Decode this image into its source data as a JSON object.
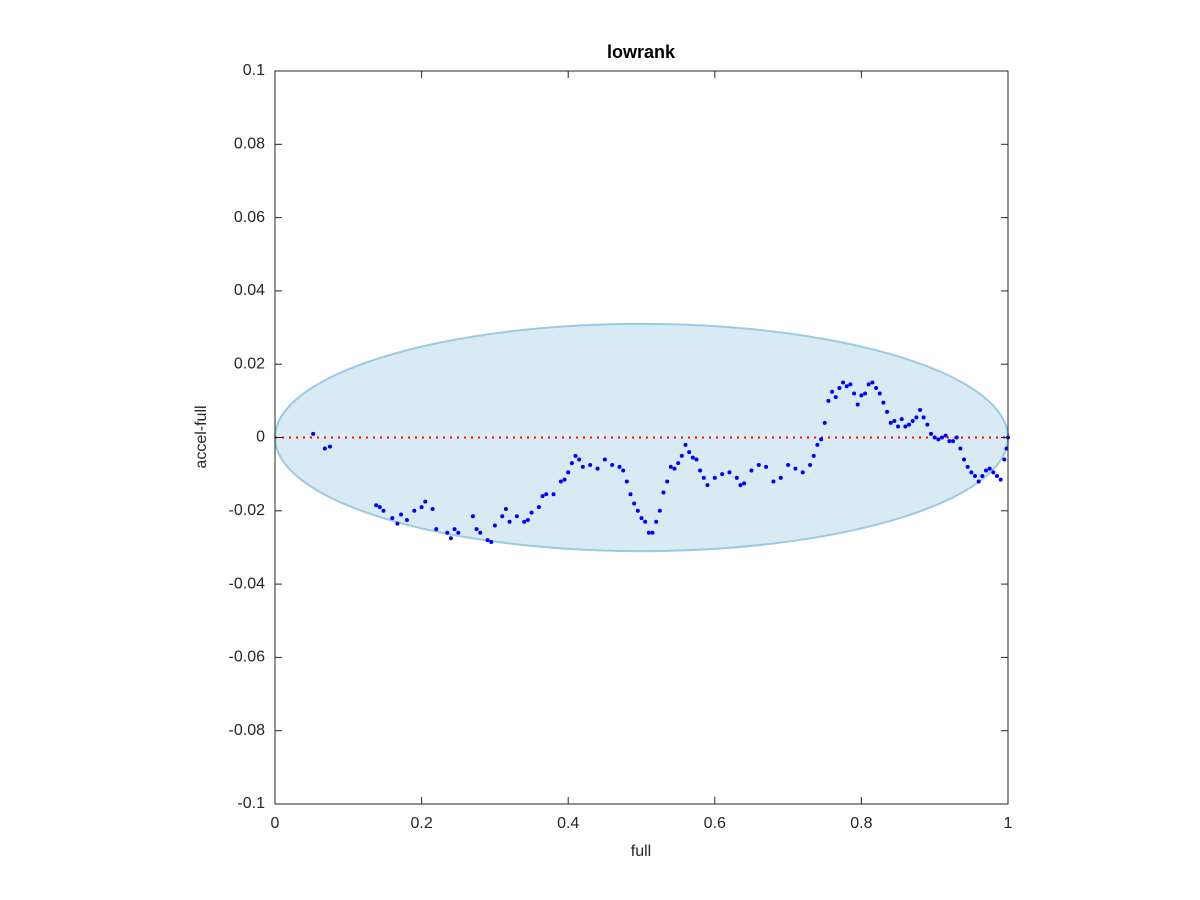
{
  "chart_data": {
    "type": "scatter",
    "title": "lowrank",
    "xlabel": "full",
    "ylabel": "accel-full",
    "xlim": [
      0,
      1
    ],
    "ylim": [
      -0.1,
      0.1
    ],
    "xticks": [
      0,
      0.2,
      0.4,
      0.6,
      0.8,
      1
    ],
    "yticks": [
      -0.1,
      -0.08,
      -0.06,
      -0.04,
      -0.02,
      0,
      0.02,
      0.04,
      0.06,
      0.08,
      0.1
    ],
    "ellipse": {
      "cx": 0.5,
      "cy": 0,
      "rx": 0.5,
      "ry": 0.031,
      "color": "#9ecae1"
    },
    "reference_line": {
      "y": 0,
      "color": "#ff0000"
    },
    "series": [
      {
        "color": "#0000ff",
        "x": [
          0.052,
          0.068,
          0.075,
          0.138,
          0.143,
          0.148,
          0.16,
          0.167,
          0.172,
          0.18,
          0.19,
          0.2,
          0.205,
          0.215,
          0.22,
          0.235,
          0.24,
          0.245,
          0.25,
          0.27,
          0.275,
          0.28,
          0.29,
          0.295,
          0.3,
          0.31,
          0.315,
          0.32,
          0.33,
          0.34,
          0.345,
          0.35,
          0.36,
          0.365,
          0.37,
          0.38,
          0.39,
          0.395,
          0.4,
          0.405,
          0.41,
          0.415,
          0.42,
          0.43,
          0.44,
          0.45,
          0.46,
          0.47,
          0.475,
          0.48,
          0.485,
          0.49,
          0.495,
          0.5,
          0.505,
          0.51,
          0.515,
          0.52,
          0.525,
          0.53,
          0.535,
          0.54,
          0.545,
          0.55,
          0.555,
          0.56,
          0.565,
          0.57,
          0.575,
          0.58,
          0.585,
          0.59,
          0.6,
          0.61,
          0.62,
          0.63,
          0.635,
          0.64,
          0.65,
          0.66,
          0.67,
          0.68,
          0.69,
          0.7,
          0.71,
          0.72,
          0.73,
          0.735,
          0.74,
          0.745,
          0.75,
          0.755,
          0.76,
          0.765,
          0.77,
          0.775,
          0.78,
          0.785,
          0.79,
          0.795,
          0.8,
          0.805,
          0.81,
          0.815,
          0.82,
          0.825,
          0.83,
          0.835,
          0.84,
          0.845,
          0.85,
          0.855,
          0.86,
          0.865,
          0.87,
          0.875,
          0.88,
          0.885,
          0.89,
          0.895,
          0.9,
          0.905,
          0.91,
          0.915,
          0.92,
          0.925,
          0.93,
          0.935,
          0.94,
          0.945,
          0.95,
          0.955,
          0.96,
          0.965,
          0.97,
          0.975,
          0.98,
          0.985,
          0.99,
          0.995,
          0.998,
          1.0
        ],
        "values": [
          0.001,
          -0.003,
          -0.0025,
          -0.0185,
          -0.019,
          -0.02,
          -0.022,
          -0.0235,
          -0.021,
          -0.0225,
          -0.02,
          -0.019,
          -0.0175,
          -0.0195,
          -0.025,
          -0.026,
          -0.0275,
          -0.025,
          -0.026,
          -0.0215,
          -0.025,
          -0.026,
          -0.028,
          -0.0285,
          -0.024,
          -0.0215,
          -0.0195,
          -0.023,
          -0.0215,
          -0.023,
          -0.0225,
          -0.0205,
          -0.019,
          -0.016,
          -0.0155,
          -0.0155,
          -0.012,
          -0.0115,
          -0.0095,
          -0.007,
          -0.005,
          -0.006,
          -0.008,
          -0.0075,
          -0.0085,
          -0.006,
          -0.0075,
          -0.008,
          -0.009,
          -0.012,
          -0.0155,
          -0.018,
          -0.02,
          -0.022,
          -0.023,
          -0.026,
          -0.026,
          -0.023,
          -0.02,
          -0.015,
          -0.012,
          -0.008,
          -0.0085,
          -0.007,
          -0.005,
          -0.002,
          -0.004,
          -0.0055,
          -0.006,
          -0.009,
          -0.011,
          -0.013,
          -0.011,
          -0.01,
          -0.0095,
          -0.011,
          -0.013,
          -0.0125,
          -0.009,
          -0.0075,
          -0.008,
          -0.012,
          -0.011,
          -0.0075,
          -0.0085,
          -0.0095,
          -0.0075,
          -0.005,
          -0.002,
          -0.0005,
          0.004,
          0.01,
          0.0125,
          0.011,
          0.0135,
          0.015,
          0.014,
          0.0145,
          0.012,
          0.009,
          0.0115,
          0.012,
          0.0145,
          0.015,
          0.0135,
          0.012,
          0.0095,
          0.007,
          0.004,
          0.0045,
          0.003,
          0.005,
          0.003,
          0.0035,
          0.0045,
          0.0055,
          0.0075,
          0.0055,
          0.0035,
          0.001,
          0,
          -0.0005,
          0,
          0.0005,
          -0.001,
          -0.001,
          0,
          -0.003,
          -0.006,
          -0.008,
          -0.0095,
          -0.0105,
          -0.012,
          -0.0105,
          -0.009,
          -0.0085,
          -0.0095,
          -0.0105,
          -0.0115,
          -0.006,
          -0.003,
          0
        ]
      }
    ]
  }
}
